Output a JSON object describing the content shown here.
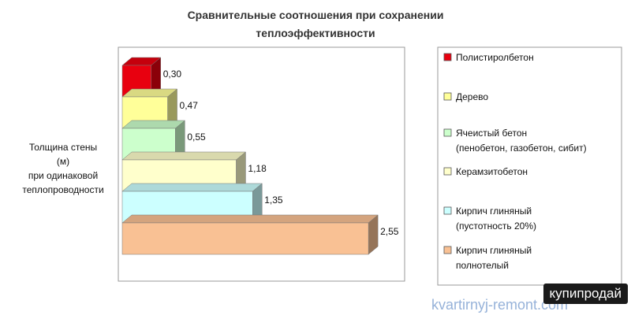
{
  "chart_data": {
    "type": "bar3d",
    "title": "Сравнительные соотношения при сохранении\nтеплоэффективности",
    "y_label": "Толщина стены\n(м)\nпри одинаковой\nтеплопроводности",
    "categories": [
      "Полистиролбетон",
      "Дерево",
      "Ячеистый бетон\n(пенобетон, газобетон, сибит)",
      "Керамзитобетон",
      "Кирпич глиняный\n(пустотность 20%)",
      "Кирпич глиняный\nполнотелый"
    ],
    "values": [
      0.3,
      0.47,
      0.55,
      1.18,
      1.35,
      2.55
    ],
    "value_labels": [
      "0,30",
      "0,47",
      "0,55",
      "1,18",
      "1,35",
      "2,55"
    ],
    "colors": [
      "#e8000f",
      "#ffff99",
      "#ccffcc",
      "#ffffcc",
      "#ccffff",
      "#f9c194"
    ],
    "watermarks": [
      "купипродай",
      "kvartirnyj-remont.com"
    ]
  }
}
